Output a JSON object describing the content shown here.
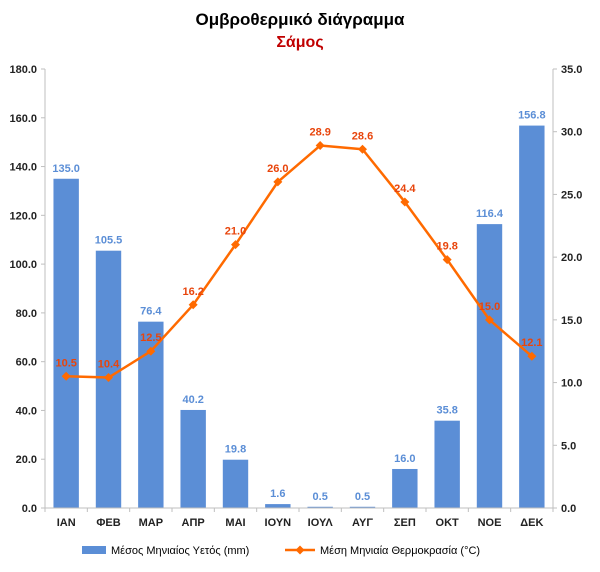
{
  "chart_data": {
    "type": "bar",
    "title": "Ομβροθερμικό διάγραμμα",
    "subtitle": "Σάμος",
    "categories": [
      "ΙΑΝ",
      "ΦΕΒ",
      "ΜΑΡ",
      "ΑΠΡ",
      "ΜΑΙ",
      "ΙΟΥΝ",
      "ΙΟΥΛ",
      "ΑΥΓ",
      "ΣΕΠ",
      "ΟΚΤ",
      "ΝΟΕ",
      "ΔΕΚ"
    ],
    "series": [
      {
        "name": "Μέσος Μηνιαίος Υετός (mm)",
        "type": "bar",
        "axis": "left",
        "color": "#5B8ED6",
        "label_color": "#5B8ED6",
        "values": [
          135.0,
          105.5,
          76.4,
          40.2,
          19.8,
          1.6,
          0.5,
          0.5,
          16.0,
          35.8,
          116.4,
          156.8
        ],
        "labels": [
          "135.0",
          "105.5",
          "76.4",
          "40.2",
          "19.8",
          "1.6",
          "0.5",
          "0.5",
          "16.0",
          "35.8",
          "116.4",
          "156.8"
        ]
      },
      {
        "name": "Μέση Μηνιαία Θερμοκρασία (°C)",
        "type": "line",
        "axis": "right",
        "color": "#FF6A00",
        "label_color": "#E8450C",
        "values": [
          10.5,
          10.4,
          12.5,
          16.2,
          21.0,
          26.0,
          28.9,
          28.6,
          24.4,
          19.8,
          15.0,
          12.1
        ],
        "labels": [
          "10.5",
          "10.4",
          "12.5",
          "16.2",
          "21.0",
          "26.0",
          "28.9",
          "28.6",
          "24.4",
          "19.8",
          "15.0",
          "12.1"
        ]
      }
    ],
    "y_left": {
      "min": 0,
      "max": 180,
      "ticks": [
        "0.0",
        "20.0",
        "40.0",
        "60.0",
        "80.0",
        "100.0",
        "120.0",
        "140.0",
        "160.0",
        "180.0"
      ],
      "tick_values": [
        0,
        20,
        40,
        60,
        80,
        100,
        120,
        140,
        160,
        180
      ]
    },
    "y_right": {
      "min": 0,
      "max": 35,
      "ticks": [
        "0.0",
        "5.0",
        "10.0",
        "15.0",
        "20.0",
        "25.0",
        "30.0",
        "35.0"
      ],
      "tick_values": [
        0,
        5,
        10,
        15,
        20,
        25,
        30,
        35
      ]
    },
    "grid": false,
    "legend_position": "bottom",
    "title_color": "#000000",
    "subtitle_color": "#C00000"
  }
}
